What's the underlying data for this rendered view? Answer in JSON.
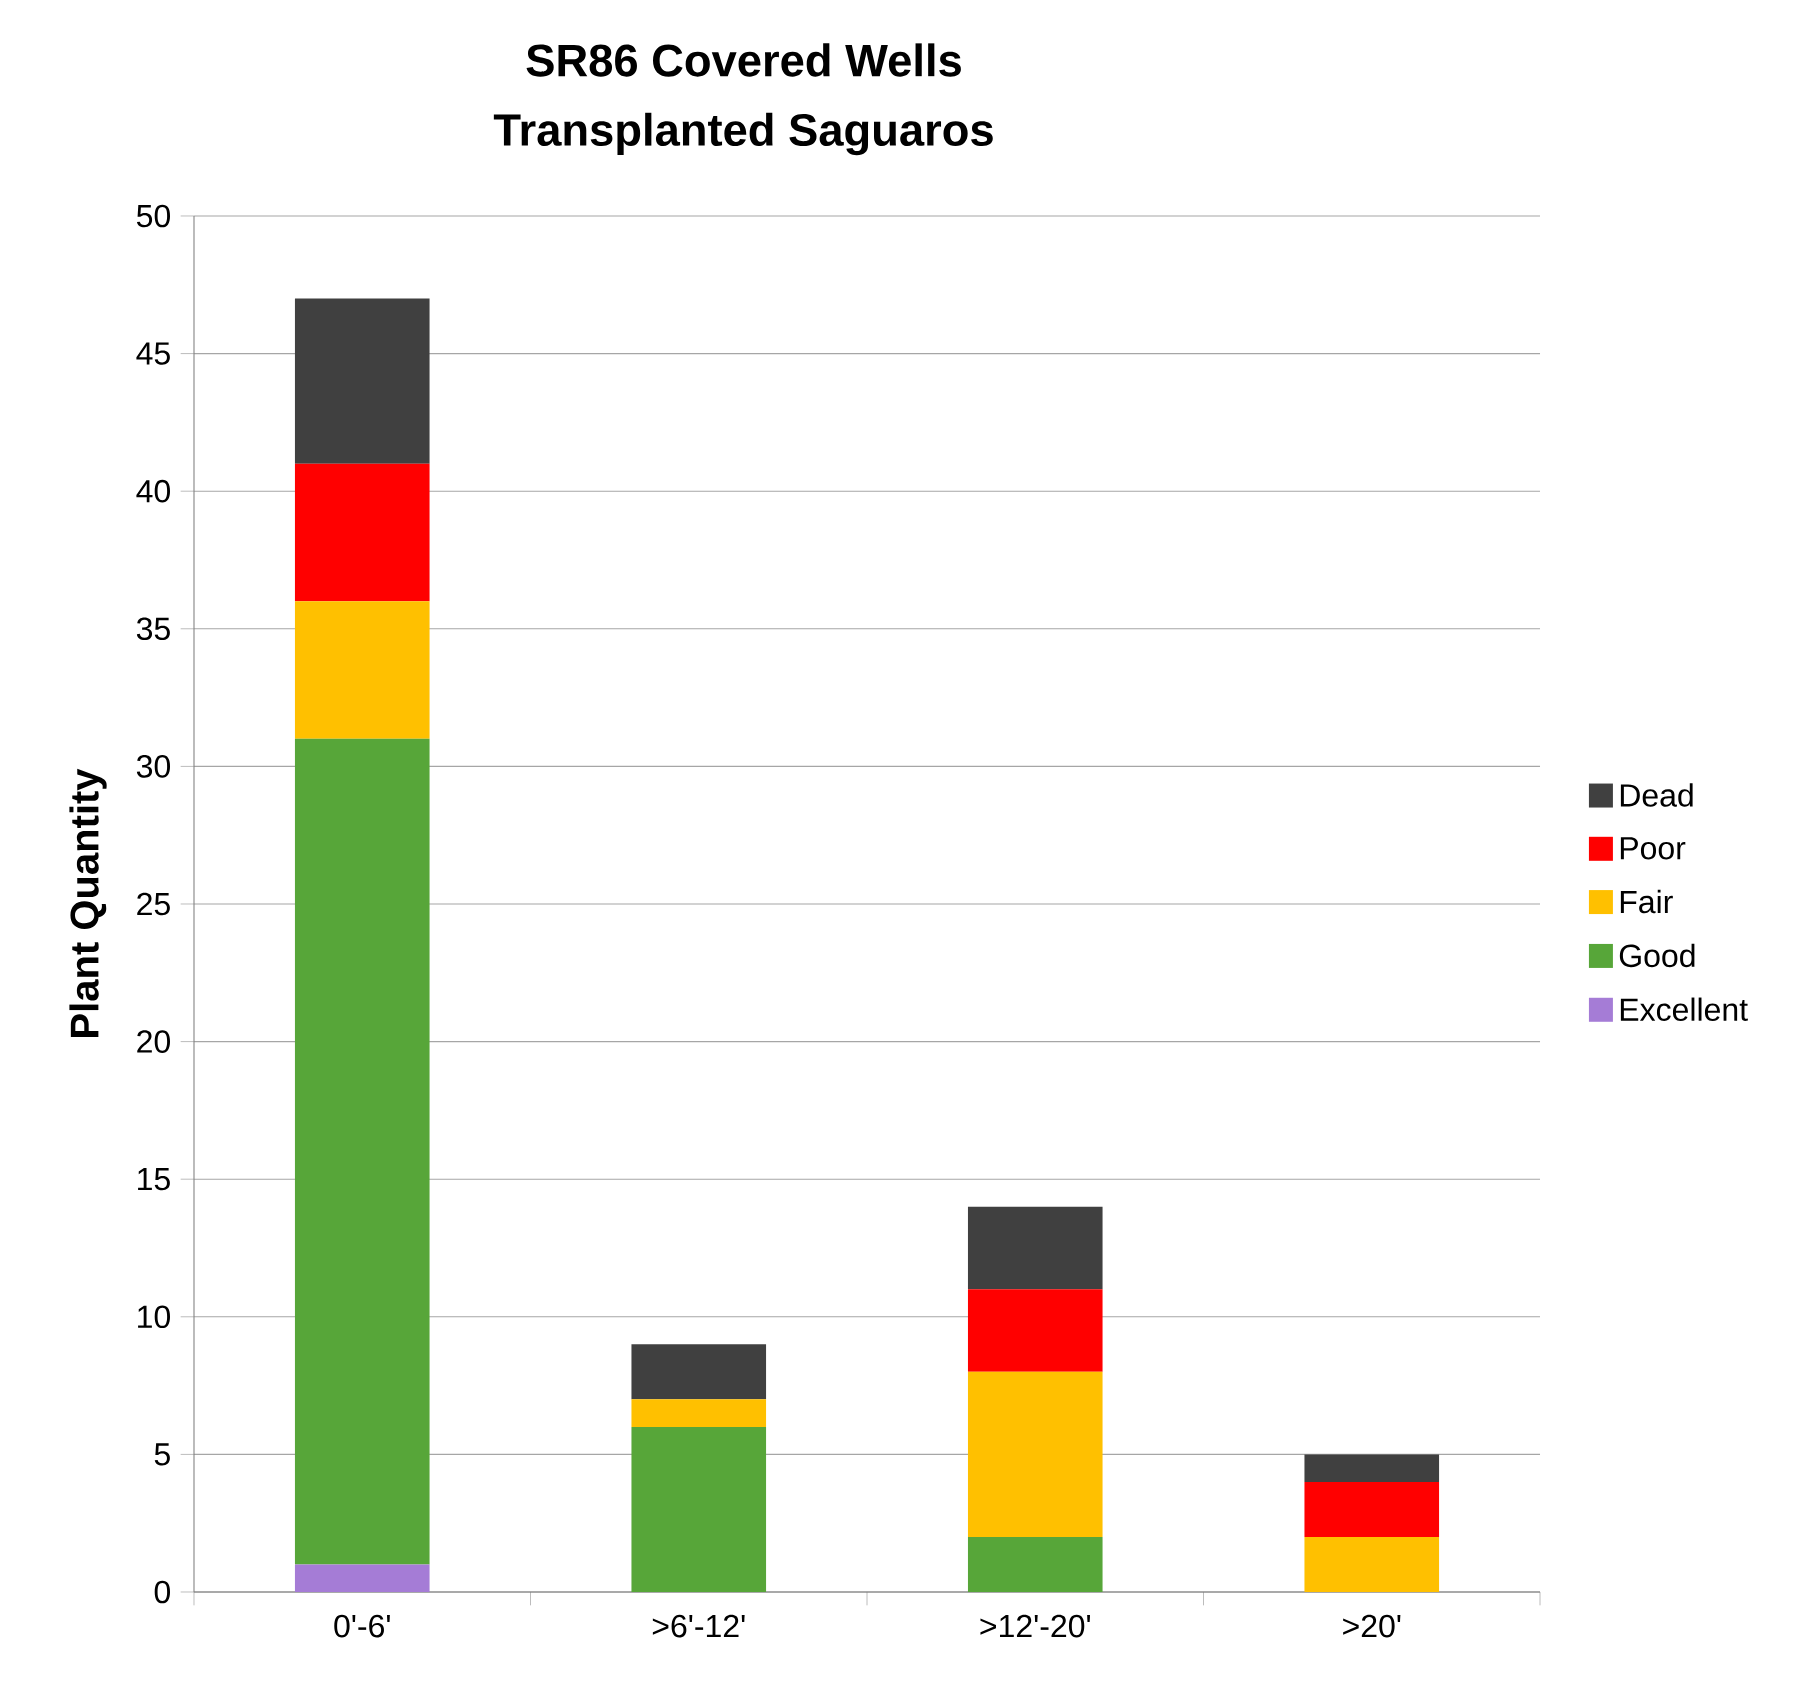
{
  "chart_data": {
    "type": "bar",
    "stacked": true,
    "title": "SR86 Covered Wells",
    "subtitle": "Transplanted Saguaros",
    "ylabel": "Plant Quantity",
    "categories": [
      "0'-6'",
      ">6'-12'",
      ">12'-20'",
      ">20'"
    ],
    "series": [
      {
        "name": "Excellent",
        "color": "#a57cd6",
        "values": [
          1,
          0,
          0,
          0
        ]
      },
      {
        "name": "Good",
        "color": "#57a639",
        "values": [
          30,
          6,
          2,
          0
        ]
      },
      {
        "name": "Fair",
        "color": "#ffc000",
        "values": [
          5,
          1,
          6,
          2
        ]
      },
      {
        "name": "Poor",
        "color": "#ff0000",
        "values": [
          5,
          0,
          3,
          2
        ]
      },
      {
        "name": "Dead",
        "color": "#404040",
        "values": [
          6,
          2,
          3,
          1
        ]
      }
    ],
    "ylim": [
      0,
      50
    ],
    "yticks": [
      0,
      5,
      10,
      15,
      20,
      25,
      30,
      35,
      40,
      45,
      50
    ],
    "grid": "y",
    "legend": "right"
  }
}
